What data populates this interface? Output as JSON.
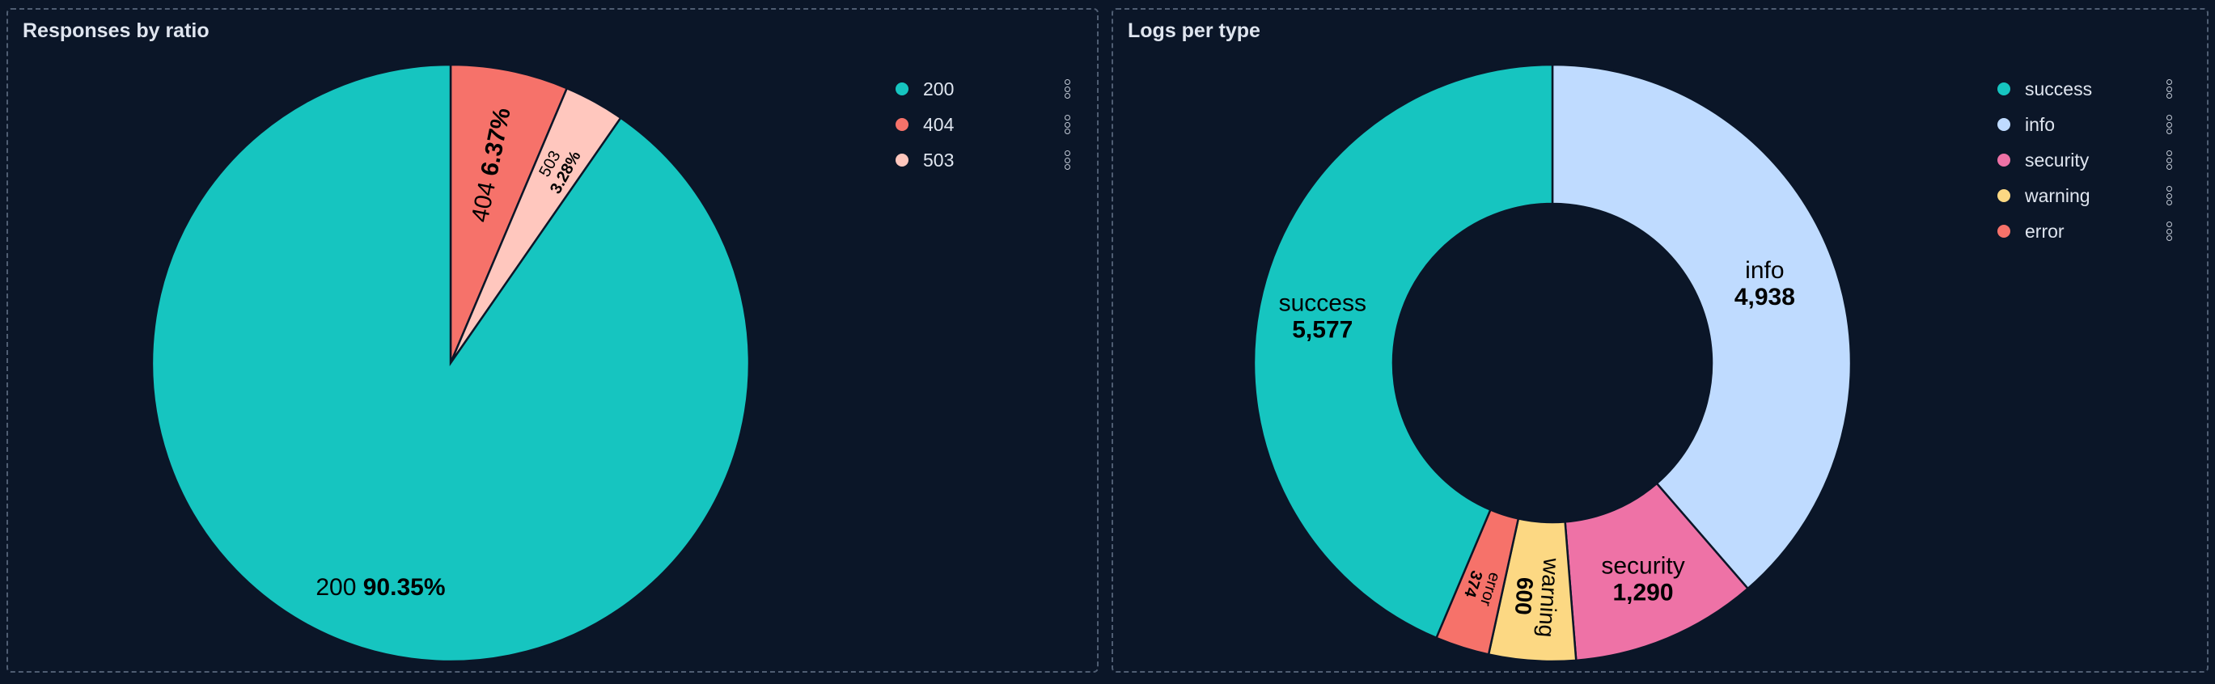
{
  "background": "#0b1628",
  "chart_data": [
    {
      "type": "pie",
      "title": "Responses by ratio",
      "value_format": "percent",
      "legend_position": "top-right",
      "slices": [
        {
          "label": "404",
          "value": 6.37,
          "display": "6.37%",
          "color": "#f6726a"
        },
        {
          "label": "503",
          "value": 3.28,
          "display": "3.28%",
          "color": "#ffc7be"
        },
        {
          "label": "200",
          "value": 90.35,
          "display": "90.35%",
          "color": "#16c5c0"
        }
      ],
      "legend": [
        {
          "label": "200",
          "color": "#16c5c0"
        },
        {
          "label": "404",
          "color": "#f6726a"
        },
        {
          "label": "503",
          "color": "#ffc7be"
        }
      ]
    },
    {
      "type": "donut",
      "title": "Logs per type",
      "legend_position": "top-right",
      "slices": [
        {
          "label": "info",
          "value": 4938,
          "display": "4,938",
          "color": "#bfdbff"
        },
        {
          "label": "security",
          "value": 1290,
          "display": "1,290",
          "color": "#ee72a6"
        },
        {
          "label": "warning",
          "value": 600,
          "display": "600",
          "color": "#fcd883"
        },
        {
          "label": "error",
          "value": 374,
          "display": "374",
          "color": "#f6726a"
        },
        {
          "label": "success",
          "value": 5577,
          "display": "5,577",
          "color": "#16c5c0"
        }
      ],
      "legend": [
        {
          "label": "success",
          "color": "#16c5c0"
        },
        {
          "label": "info",
          "color": "#bfdbff"
        },
        {
          "label": "security",
          "color": "#ee72a6"
        },
        {
          "label": "warning",
          "color": "#fcd883"
        },
        {
          "label": "error",
          "color": "#f6726a"
        }
      ]
    }
  ]
}
